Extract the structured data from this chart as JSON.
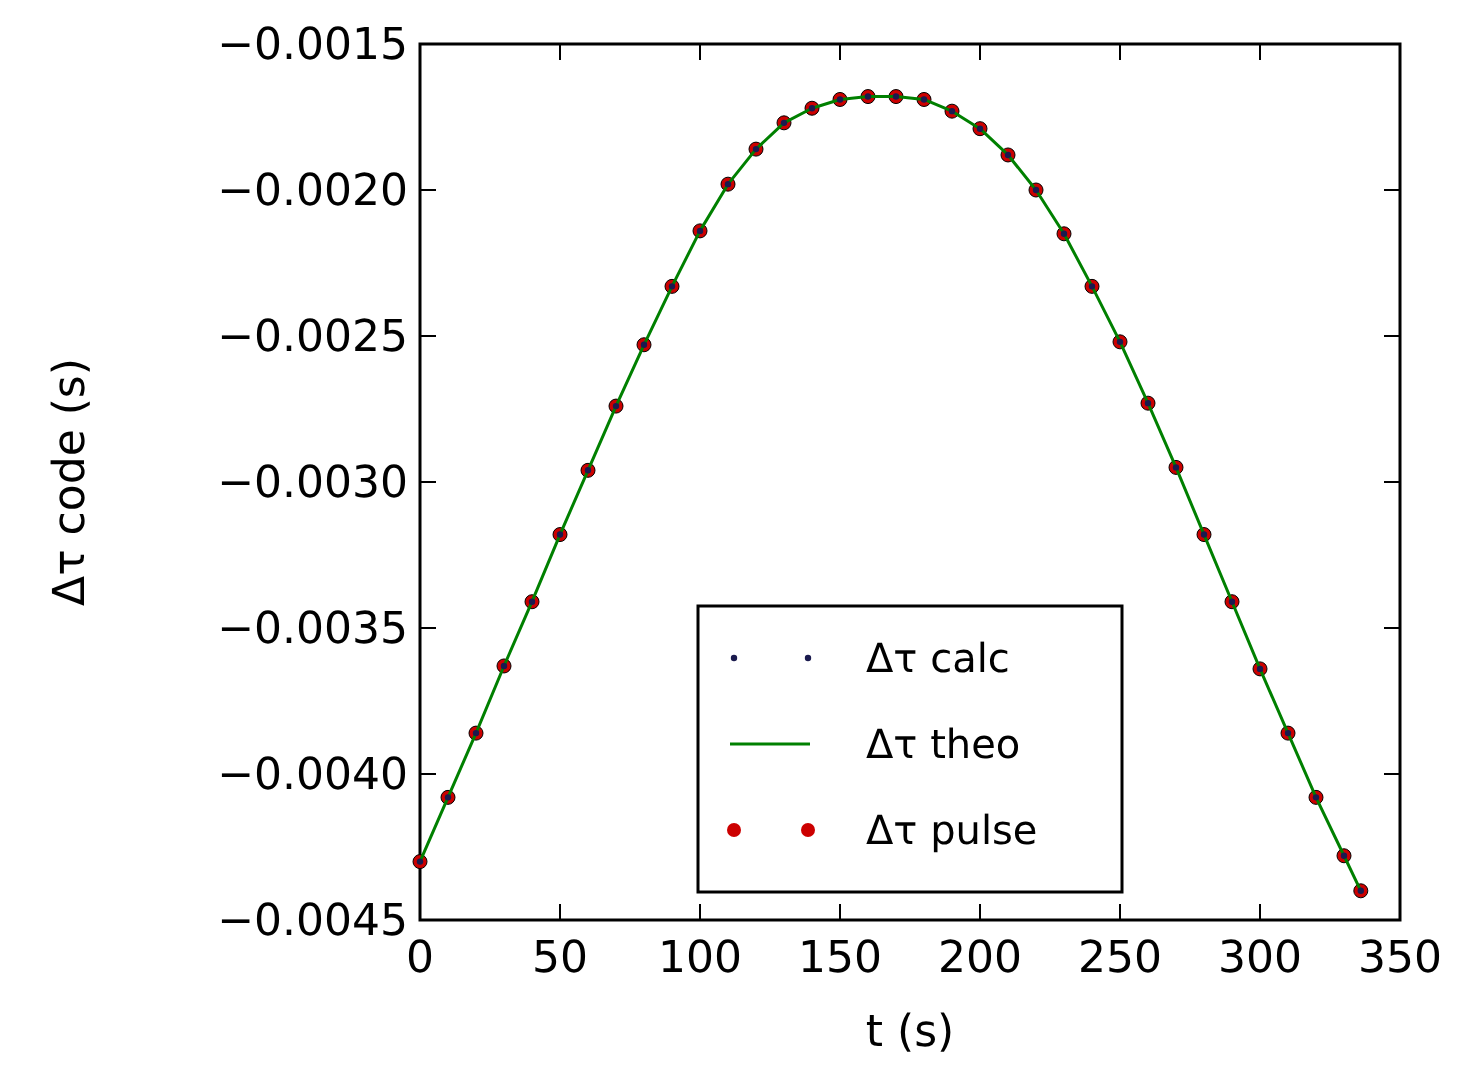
{
  "chart_data": {
    "type": "scatter",
    "xlabel": "t (s)",
    "ylabel": "Δτ code (s)",
    "xlim": [
      0,
      350
    ],
    "xticks": [
      0,
      50,
      100,
      150,
      200,
      250,
      300,
      350
    ],
    "ylim": [
      -0.0045,
      -0.0015
    ],
    "yticks": [
      {
        "value": -0.0045,
        "label": "−0.0045"
      },
      {
        "value": -0.004,
        "label": "−0.0040"
      },
      {
        "value": -0.0035,
        "label": "−0.0035"
      },
      {
        "value": -0.003,
        "label": "−0.0030"
      },
      {
        "value": -0.0025,
        "label": "−0.0025"
      },
      {
        "value": -0.002,
        "label": "−0.0020"
      },
      {
        "value": -0.0015,
        "label": "−0.0015"
      }
    ],
    "x": [
      0,
      10,
      20,
      30,
      40,
      50,
      60,
      70,
      80,
      90,
      100,
      110,
      120,
      130,
      140,
      150,
      160,
      170,
      180,
      190,
      200,
      210,
      220,
      230,
      240,
      250,
      260,
      270,
      280,
      290,
      300,
      310,
      320,
      330,
      336
    ],
    "series": [
      {
        "name": "Δτ calc",
        "marker": "circle",
        "color": "#1a1a4e",
        "values": [
          -0.0043,
          -0.00408,
          -0.00386,
          -0.00363,
          -0.00341,
          -0.00318,
          -0.00296,
          -0.00274,
          -0.00253,
          -0.00233,
          -0.00214,
          -0.00198,
          -0.00186,
          -0.00177,
          -0.00172,
          -0.00169,
          -0.00168,
          -0.00168,
          -0.00169,
          -0.00173,
          -0.00179,
          -0.00188,
          -0.002,
          -0.00215,
          -0.00233,
          -0.00252,
          -0.00273,
          -0.00295,
          -0.00318,
          -0.00341,
          -0.00364,
          -0.00386,
          -0.00408,
          -0.00428,
          -0.0044
        ]
      },
      {
        "name": "Δτ theo",
        "type": "line",
        "color": "#008000",
        "values": [
          -0.0043,
          -0.00408,
          -0.00386,
          -0.00363,
          -0.00341,
          -0.00318,
          -0.00296,
          -0.00274,
          -0.00253,
          -0.00233,
          -0.00214,
          -0.00198,
          -0.00186,
          -0.00177,
          -0.00172,
          -0.00169,
          -0.00168,
          -0.00168,
          -0.00169,
          -0.00173,
          -0.00179,
          -0.00188,
          -0.002,
          -0.00215,
          -0.00233,
          -0.00252,
          -0.00273,
          -0.00295,
          -0.00318,
          -0.00341,
          -0.00364,
          -0.00386,
          -0.00408,
          -0.00428,
          -0.0044
        ]
      },
      {
        "name": "Δτ pulse",
        "marker": "circle",
        "color": "#cc0000",
        "values": [
          -0.0043,
          -0.00408,
          -0.00386,
          -0.00363,
          -0.00341,
          -0.00318,
          -0.00296,
          -0.00274,
          -0.00253,
          -0.00233,
          -0.00214,
          -0.00198,
          -0.00186,
          -0.00177,
          -0.00172,
          -0.00169,
          -0.00168,
          -0.00168,
          -0.00169,
          -0.00173,
          -0.00179,
          -0.00188,
          -0.002,
          -0.00215,
          -0.00233,
          -0.00252,
          -0.00273,
          -0.00295,
          -0.00318,
          -0.00341,
          -0.00364,
          -0.00386,
          -0.00408,
          -0.00428,
          -0.0044
        ]
      }
    ],
    "legend": "bottom",
    "grid": false
  }
}
